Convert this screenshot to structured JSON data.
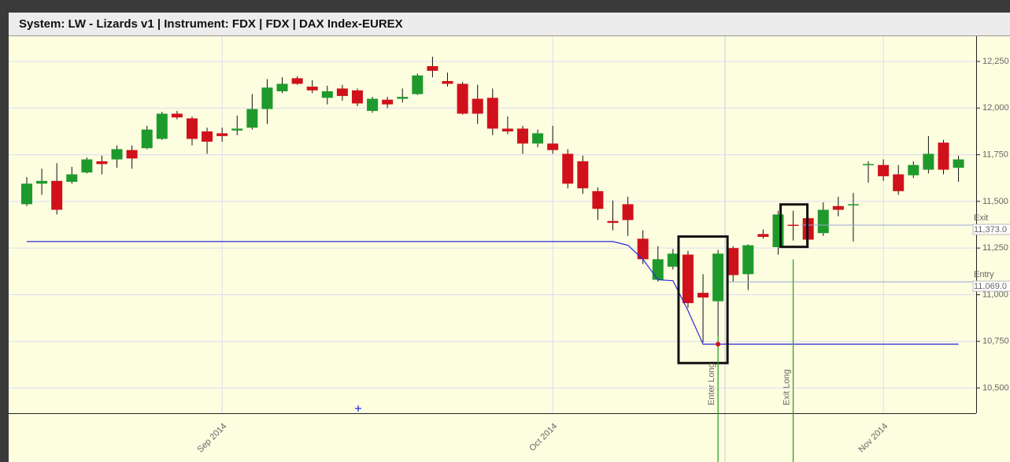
{
  "chart_data": {
    "type": "candlestick",
    "title": "System: LW - Lizards v1  |  Instrument: FDX  |  FDX  |  DAX Index-EUREX",
    "categories": [
      null,
      null,
      null,
      null,
      null,
      null,
      null,
      null,
      null,
      null,
      null,
      null,
      null,
      "Sep 2014",
      null,
      null,
      null,
      null,
      null,
      null,
      null,
      null,
      null,
      null,
      null,
      null,
      null,
      null,
      null,
      null,
      null,
      null,
      null,
      null,
      null,
      "Oct 2014",
      null,
      null,
      null,
      null,
      null,
      null,
      null,
      null,
      null,
      null,
      null,
      null,
      null,
      null,
      null,
      null,
      null,
      null,
      null,
      null,
      null,
      "Nov 2014",
      null,
      null,
      null,
      null,
      null
    ],
    "open": [
      11485,
      11595,
      11610,
      11605,
      11655,
      11715,
      11725,
      11775,
      11785,
      11835,
      11970,
      11945,
      11875,
      11865,
      11880,
      11895,
      11995,
      12090,
      12160,
      12115,
      12055,
      12105,
      12095,
      11985,
      12045,
      12050,
      12075,
      12225,
      12145,
      12130,
      12050,
      12055,
      11890,
      11890,
      11810,
      11810,
      11755,
      11715,
      11555,
      11395,
      11485,
      11300,
      11080,
      11150,
      11215,
      11010,
      10965,
      11250,
      11110,
      11325,
      11255,
      11375,
      11410,
      11330,
      11475,
      11480,
      11695,
      11695,
      11645,
      11640,
      11670,
      11815,
      11680
    ],
    "high": [
      11630,
      11675,
      11705,
      11685,
      11735,
      11745,
      11800,
      11800,
      11905,
      11980,
      11985,
      11955,
      11895,
      11895,
      11960,
      12075,
      12155,
      12165,
      12170,
      12150,
      12120,
      12125,
      12105,
      12060,
      12060,
      12105,
      12185,
      12275,
      12190,
      12140,
      12125,
      12105,
      11955,
      11905,
      11885,
      11905,
      11780,
      11745,
      11575,
      11505,
      11525,
      11345,
      11260,
      11245,
      11235,
      11110,
      11240,
      11260,
      11270,
      11350,
      11450,
      11450,
      11420,
      11495,
      11525,
      11545,
      11715,
      11725,
      11695,
      11715,
      11850,
      11830,
      11745
    ],
    "low": [
      11475,
      11535,
      11430,
      11595,
      11650,
      11645,
      11680,
      11675,
      11780,
      11830,
      11940,
      11800,
      11755,
      11820,
      11855,
      11885,
      11915,
      12080,
      12125,
      12080,
      12020,
      12040,
      12010,
      11975,
      12000,
      12030,
      12070,
      12165,
      12115,
      11965,
      11915,
      11855,
      11860,
      11755,
      11790,
      11755,
      11570,
      11540,
      11400,
      11345,
      11315,
      11165,
      11070,
      11135,
      10930,
      10745,
      10735,
      11070,
      11025,
      11300,
      11215,
      11290,
      11250,
      11315,
      11420,
      11285,
      11600,
      11610,
      11535,
      11625,
      11650,
      11645,
      11605
    ],
    "close": [
      11595,
      11610,
      11455,
      11645,
      11725,
      11700,
      11780,
      11730,
      11885,
      11970,
      11950,
      11835,
      11820,
      11850,
      11890,
      11995,
      12110,
      12130,
      12130,
      12095,
      12090,
      12065,
      12025,
      12050,
      12020,
      12060,
      12175,
      12200,
      12130,
      11970,
      11970,
      11890,
      11875,
      11810,
      11865,
      11775,
      11595,
      11570,
      11460,
      11385,
      11400,
      11190,
      11190,
      11220,
      10955,
      10985,
      11220,
      11105,
      11265,
      11310,
      11430,
      11370,
      11295,
      11455,
      11455,
      11485,
      11700,
      11635,
      11555,
      11695,
      11755,
      11670,
      11725
    ],
    "up_color": "#1e9a2c",
    "down_color": "#d0111b",
    "stop_line": {
      "color": "#2b2bdc",
      "values": [
        11285,
        11285,
        11285,
        11285,
        11285,
        11285,
        11285,
        11285,
        11285,
        11285,
        11285,
        11285,
        11285,
        11285,
        11285,
        11285,
        11285,
        11285,
        11285,
        11285,
        11285,
        11285,
        11285,
        11285,
        11285,
        11285,
        11285,
        11285,
        11285,
        11285,
        11285,
        11285,
        11285,
        11285,
        11285,
        11285,
        11285,
        11285,
        11285,
        11285,
        11265,
        11190,
        11080,
        11075,
        10915,
        10735,
        10735,
        10735,
        10735,
        10735,
        10735,
        10735,
        10735,
        10735,
        10735,
        10735,
        10735,
        10735,
        10735,
        10735,
        10735,
        10735,
        10735
      ]
    },
    "annotations": [
      {
        "label": "Enter Long",
        "index": 46
      },
      {
        "label": "Exit Long",
        "index": 51
      }
    ],
    "levels": [
      {
        "label": "Exit",
        "value": 11373.0,
        "value_label": "11,373.0"
      },
      {
        "label": "Entry",
        "value": 11069.0,
        "value_label": "11,069.0"
      }
    ],
    "ylim": [
      10365,
      12381
    ],
    "yticks": [
      {
        "value": 10500,
        "label": "10,500"
      },
      {
        "value": 10750,
        "label": "10,750"
      },
      {
        "value": 11000,
        "label": "11,000"
      },
      {
        "value": 11250,
        "label": "11,250"
      },
      {
        "value": 11500,
        "label": "11,500"
      },
      {
        "value": 11750,
        "label": "11,750"
      },
      {
        "value": 12000,
        "label": "12,000"
      },
      {
        "value": 12250,
        "label": "12,250"
      }
    ],
    "grid": true
  }
}
